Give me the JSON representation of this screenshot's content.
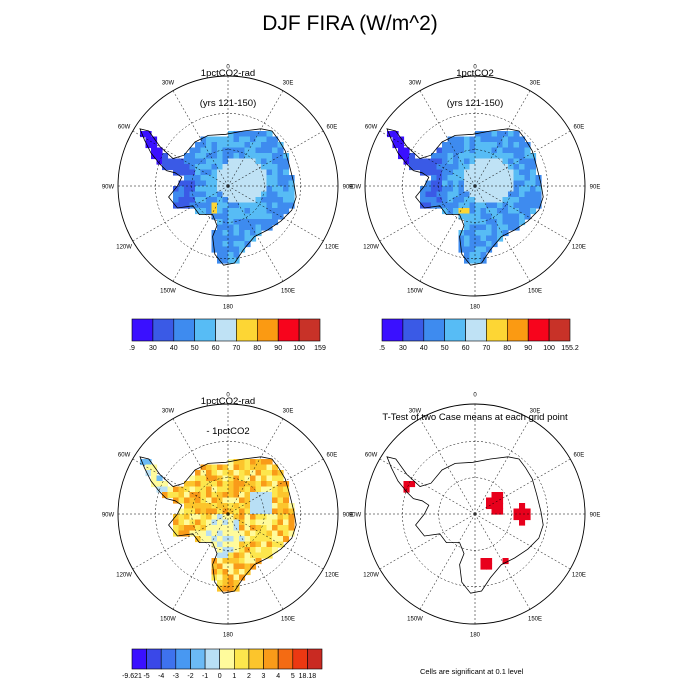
{
  "title": "DJF FIRA (W/m^2)",
  "note": "Cells are significant at 0.1 level",
  "colors": {
    "abs": [
      "#3a10ff",
      "#3a5ae6",
      "#3e8bef",
      "#57bcf5",
      "#bfe2f5",
      "#fdd634",
      "#fb9a12",
      "#f7041c",
      "#c83228"
    ],
    "diff": [
      "#3a10ff",
      "#3a48e8",
      "#3e72ee",
      "#4898f2",
      "#6bbaf5",
      "#b8dff5",
      "#fffb9c",
      "#fde64d",
      "#fcc52c",
      "#f99b19",
      "#f46b13",
      "#ec3812",
      "#c92a22"
    ],
    "sig": "#e8001c"
  },
  "chart_data": [
    {
      "type": "heatmap",
      "panel": "top-left",
      "title": "1pctCO2-rad",
      "subtitle": "(yrs 121-150)",
      "lon_labels": [
        "0",
        "30E",
        "60E",
        "90E",
        "120E",
        "150E",
        "180",
        "150W",
        "120W",
        "90W",
        "60W",
        "30W"
      ],
      "legend": {
        "labels": [
          ".9",
          "30",
          "40",
          "50",
          "60",
          "70",
          "80",
          "90",
          "100",
          "159"
        ]
      }
    },
    {
      "type": "heatmap",
      "panel": "top-right",
      "title": "1pctCO2",
      "subtitle": "(yrs 121-150)",
      "lon_labels": [
        "0",
        "30E",
        "60E",
        "90E",
        "120E",
        "150E",
        "180",
        "150W",
        "120W",
        "90W",
        "60W",
        "30W"
      ],
      "legend": {
        "labels": [
          ".5",
          "30",
          "40",
          "50",
          "60",
          "70",
          "80",
          "90",
          "100",
          "155.2"
        ]
      }
    },
    {
      "type": "heatmap",
      "panel": "bottom-left",
      "title": "1pctCO2-rad",
      "subtitle": "- 1pctCO2",
      "lon_labels": [
        "0",
        "30E",
        "60E",
        "90E",
        "120E",
        "150E",
        "180",
        "150W",
        "120W",
        "90W",
        "60W",
        "30W"
      ],
      "legend": {
        "labels": [
          "-9.621",
          "-5",
          "-4",
          "-3",
          "-2",
          "-1",
          "0",
          "1",
          "2",
          "3",
          "4",
          "5",
          "18.18"
        ]
      }
    },
    {
      "type": "heatmap",
      "panel": "bottom-right",
      "title": "T-Test of two Case means at each grid point",
      "subtitle": "",
      "lon_labels": [
        "0",
        "30E",
        "60E",
        "90E",
        "120E",
        "150E",
        "180",
        "150W",
        "120W",
        "90W",
        "60W",
        "30W"
      ],
      "legend": null
    }
  ]
}
